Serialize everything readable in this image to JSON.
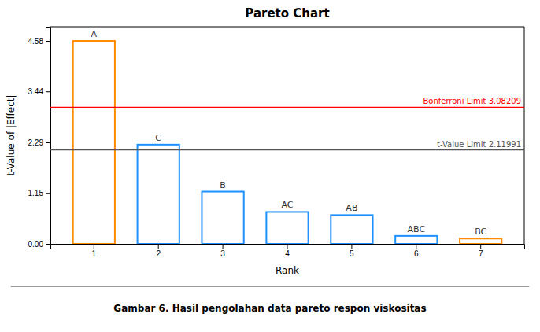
{
  "chart_data": {
    "type": "bar",
    "title": "Pareto Chart",
    "xlabel": "Rank",
    "ylabel": "t-Value of |Effect|",
    "categories": [
      "1",
      "2",
      "3",
      "4",
      "5",
      "6",
      "7"
    ],
    "values": [
      4.58,
      2.24,
      1.18,
      0.72,
      0.65,
      0.18,
      0.12
    ],
    "annotations": [
      "A",
      "C",
      "B",
      "AC",
      "AB",
      "ABC",
      "BC"
    ],
    "colors": [
      "#FF8C00",
      "#1E90FF",
      "#1E90FF",
      "#1E90FF",
      "#1E90FF",
      "#1E90FF",
      "#FF8C00"
    ],
    "reference_lines": [
      {
        "label": "Bonferroni Limit 3.08209",
        "value": 3.08209,
        "color": "red"
      },
      {
        "label": "t-Value Limit 2.11991",
        "value": 2.11991,
        "color": "#555555"
      }
    ],
    "ylim": [
      0,
      4.9
    ],
    "yticks": [
      {
        "value": 0,
        "label": "0.00"
      },
      1.15,
      2.29,
      3.44,
      4.58
    ],
    "grid": false,
    "caption": "Gambar 6. Hasil pengolahan data pareto respon viskositas"
  }
}
